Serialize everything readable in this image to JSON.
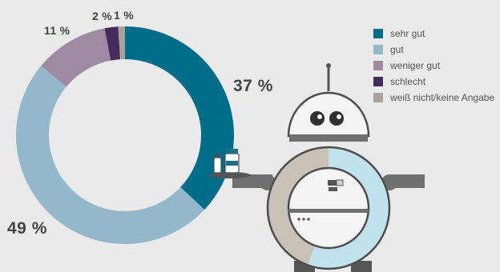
{
  "chart_data": {
    "type": "pie",
    "style": "donut",
    "categories": [
      "sehr gut",
      "gut",
      "weniger gut",
      "schlecht",
      "weiß nicht/keine Angabe"
    ],
    "values": [
      37,
      49,
      11,
      2,
      1
    ],
    "value_labels": [
      "37 %",
      "49 %",
      "11 %",
      "2 %",
      "1 %"
    ],
    "colors": [
      "#006d8a",
      "#94b8cb",
      "#9e8ba3",
      "#452a5c",
      "#aaa39a"
    ],
    "legend_placement": "top-right"
  },
  "illustration": {
    "subject": "robot holding a tray with medicine bottles",
    "ring_colors": [
      "#c8c1b5",
      "#bfe2ec"
    ]
  }
}
